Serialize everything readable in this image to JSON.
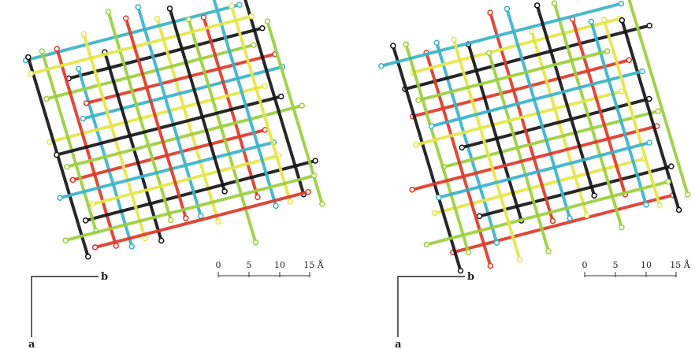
{
  "panels": [
    {
      "scale_labels": [
        "0",
        "5",
        "10",
        "15 Å"
      ],
      "axis_labels": {
        "horizontal": "b",
        "vertical": "a"
      }
    },
    {
      "scale_labels": [
        "0",
        "5",
        "10",
        "15 Å"
      ],
      "axis_labels": {
        "horizontal": "b",
        "vertical": "a"
      }
    }
  ]
}
